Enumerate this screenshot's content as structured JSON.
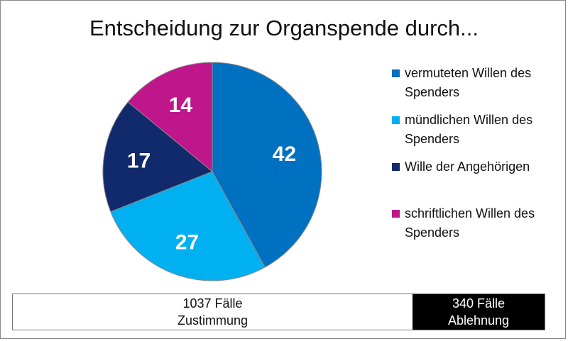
{
  "chart_data": {
    "type": "pie",
    "title": "Entscheidung zur Organspende durch...",
    "series": [
      {
        "name": "vermuteten Willen des Spenders",
        "value": 42,
        "color": "#0070c0"
      },
      {
        "name": "mündlichen Willen des Spenders",
        "value": 27,
        "color": "#00b0f0"
      },
      {
        "name": "Wille der Angehörigen",
        "value": 17,
        "color": "#102a6b"
      },
      {
        "name": "schriftlichen Willen des Spenders",
        "value": 14,
        "color": "#c0168c"
      }
    ],
    "legend": "right",
    "start_angle": "top, clockwise"
  },
  "summary": {
    "zustimmung": {
      "count": "1037 Fälle",
      "label": "Zustimmung"
    },
    "ablehnung": {
      "count": "340 Fälle",
      "label": "Ablehnung"
    }
  }
}
